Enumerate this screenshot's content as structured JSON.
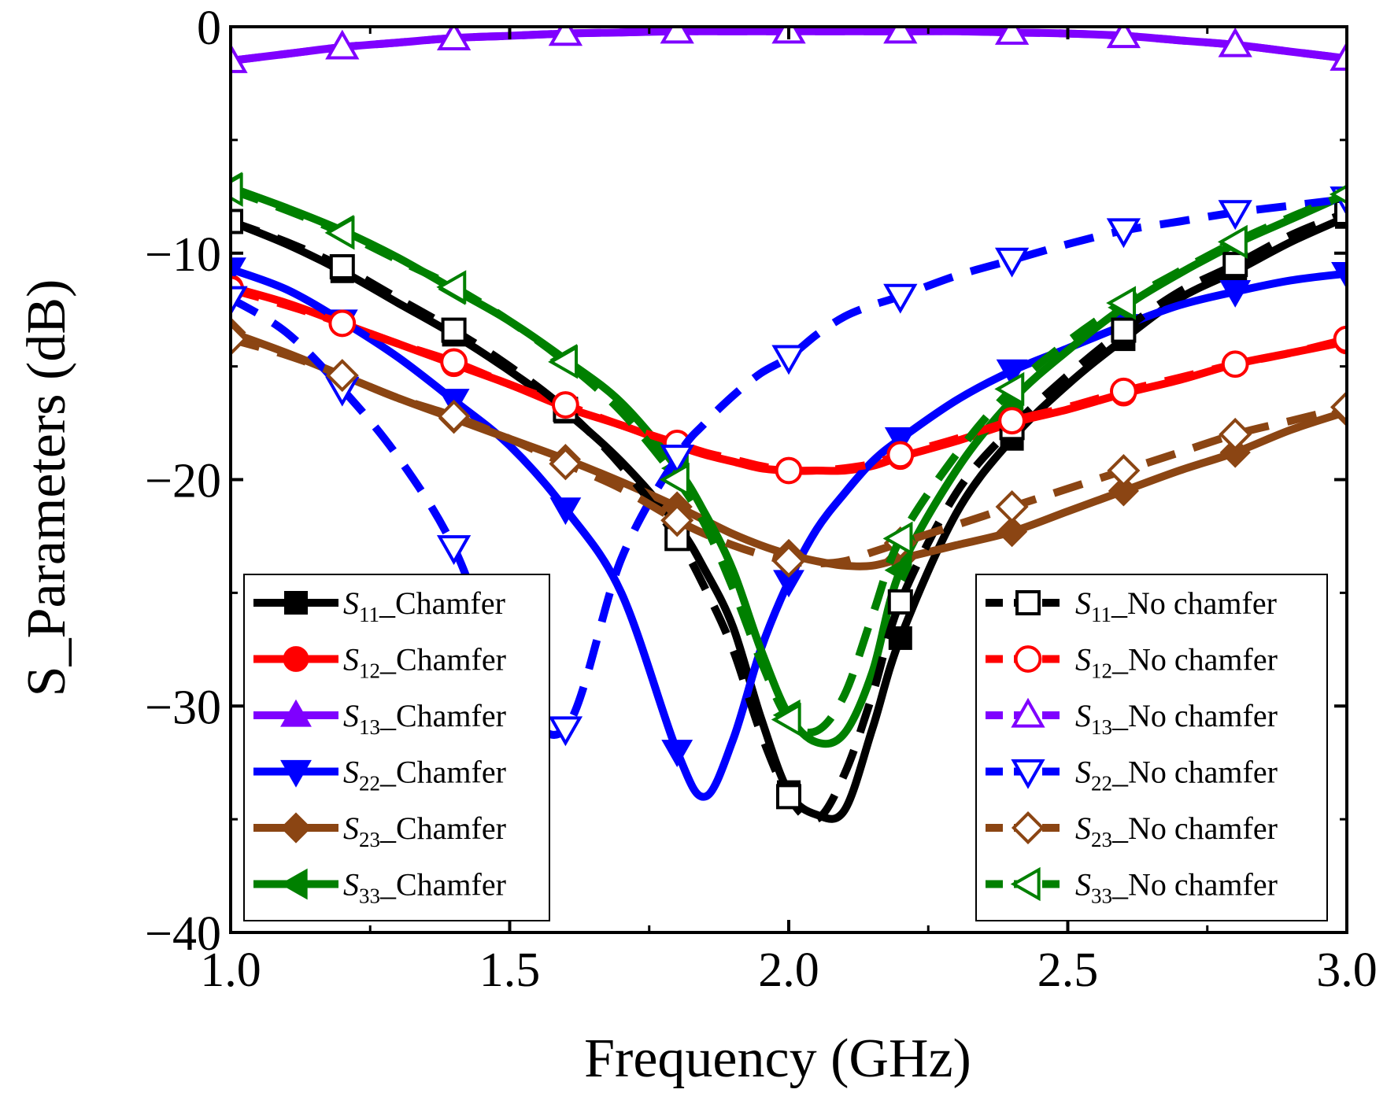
{
  "chart_data": {
    "type": "line",
    "title": "",
    "xlabel": "Frequency (GHz)",
    "ylabel": "S_Parameters (dB)",
    "xlim": [
      1.0,
      3.0
    ],
    "ylim": [
      -40,
      0
    ],
    "xticks": [
      1.0,
      1.5,
      2.0,
      2.5,
      3.0
    ],
    "xtick_labels": [
      "1.0",
      "1.5",
      "2.0",
      "2.5",
      "3.0"
    ],
    "yticks": [
      0,
      -10,
      -20,
      -30,
      -40
    ],
    "ytick_labels": [
      "0",
      "−10",
      "−20",
      "−30",
      "−40"
    ],
    "grid": false,
    "legend_placement": [
      "bottom-left",
      "bottom-right"
    ],
    "x": [
      1.0,
      1.1,
      1.2,
      1.3,
      1.4,
      1.5,
      1.6,
      1.7,
      1.8,
      1.85,
      1.9,
      1.95,
      2.0,
      2.05,
      2.1,
      2.15,
      2.2,
      2.3,
      2.4,
      2.5,
      2.6,
      2.7,
      2.8,
      2.9,
      3.0
    ],
    "series": [
      {
        "name": "S11_Chamfer",
        "sym": "S",
        "sub": "11",
        "suffix": "_Chamfer",
        "color": "#000000",
        "dash": false,
        "marker": "square",
        "filled": true,
        "group": "chamfer",
        "values": [
          -8.6,
          -9.6,
          -10.8,
          -12.2,
          -13.6,
          -15.2,
          -17.0,
          -19.2,
          -22.0,
          -24.0,
          -26.5,
          -30.5,
          -33.8,
          -34.8,
          -34.6,
          -31.0,
          -27.0,
          -21.5,
          -18.2,
          -15.8,
          -13.8,
          -12.0,
          -10.8,
          -9.5,
          -8.4
        ]
      },
      {
        "name": "S12_Chamfer",
        "sym": "S",
        "sub": "12",
        "suffix": "_Chamfer",
        "color": "#ff0000",
        "dash": false,
        "marker": "circle",
        "filled": true,
        "group": "chamfer",
        "values": [
          -11.5,
          -12.2,
          -13.1,
          -14.0,
          -14.9,
          -15.8,
          -16.8,
          -17.6,
          -18.5,
          -18.9,
          -19.2,
          -19.5,
          -19.6,
          -19.6,
          -19.6,
          -19.4,
          -19.0,
          -18.3,
          -17.5,
          -16.9,
          -16.2,
          -15.6,
          -14.9,
          -14.4,
          -13.9
        ]
      },
      {
        "name": "S13_Chamfer",
        "sym": "S",
        "sub": "13",
        "suffix": "_Chamfer",
        "color": "#7f00ff",
        "dash": false,
        "marker": "triangle-up",
        "filled": true,
        "group": "chamfer",
        "values": [
          -1.5,
          -1.2,
          -0.9,
          -0.7,
          -0.5,
          -0.4,
          -0.3,
          -0.25,
          -0.2,
          -0.2,
          -0.2,
          -0.2,
          -0.2,
          -0.2,
          -0.2,
          -0.2,
          -0.2,
          -0.2,
          -0.25,
          -0.3,
          -0.4,
          -0.6,
          -0.8,
          -1.1,
          -1.4
        ]
      },
      {
        "name": "S22_Chamfer",
        "sym": "S",
        "sub": "22",
        "suffix": "_Chamfer",
        "color": "#0000ff",
        "dash": false,
        "marker": "triangle-down",
        "filled": true,
        "group": "chamfer",
        "values": [
          -10.7,
          -11.6,
          -13.0,
          -14.6,
          -16.5,
          -18.5,
          -21.3,
          -25.0,
          -32.0,
          -34.0,
          -31.5,
          -27.5,
          -24.5,
          -22.2,
          -20.6,
          -19.2,
          -18.2,
          -16.5,
          -15.2,
          -14.2,
          -13.2,
          -12.3,
          -11.7,
          -11.2,
          -10.9
        ]
      },
      {
        "name": "S23_Chamfer",
        "sym": "S",
        "sub": "23",
        "suffix": "_Chamfer",
        "color": "#8b4513",
        "dash": false,
        "marker": "diamond",
        "filled": true,
        "group": "chamfer",
        "values": [
          -13.5,
          -14.4,
          -15.4,
          -16.4,
          -17.3,
          -18.2,
          -19.1,
          -20.1,
          -21.2,
          -21.8,
          -22.4,
          -22.9,
          -23.3,
          -23.6,
          -23.8,
          -23.8,
          -23.5,
          -22.9,
          -22.3,
          -21.4,
          -20.5,
          -19.6,
          -18.8,
          -17.8,
          -17.0
        ]
      },
      {
        "name": "S33_Chamfer",
        "sym": "S",
        "sub": "33",
        "suffix": "_Chamfer",
        "color": "#008000",
        "dash": false,
        "marker": "triangle-left",
        "filled": true,
        "group": "chamfer",
        "values": [
          -7.1,
          -8.0,
          -9.0,
          -10.2,
          -11.6,
          -13.0,
          -14.7,
          -16.6,
          -19.5,
          -21.5,
          -24.0,
          -27.5,
          -30.4,
          -31.6,
          -31.2,
          -28.5,
          -24.0,
          -19.6,
          -16.5,
          -14.3,
          -12.4,
          -10.9,
          -9.6,
          -8.5,
          -7.4
        ]
      },
      {
        "name": "S11_No chamfer",
        "sym": "S",
        "sub": "11",
        "suffix": "_No chamfer",
        "color": "#000000",
        "dash": true,
        "marker": "square",
        "filled": false,
        "group": "no-chamfer",
        "values": [
          -8.6,
          -9.5,
          -10.6,
          -12.0,
          -13.4,
          -15.0,
          -16.9,
          -19.4,
          -22.6,
          -24.8,
          -27.5,
          -31.2,
          -34.0,
          -35.0,
          -33.0,
          -29.5,
          -25.4,
          -20.6,
          -17.7,
          -15.4,
          -13.4,
          -11.7,
          -10.5,
          -9.2,
          -8.2
        ]
      },
      {
        "name": "S12_No chamfer",
        "sym": "S",
        "sub": "12",
        "suffix": "_No chamfer",
        "color": "#ff0000",
        "dash": true,
        "marker": "circle",
        "filled": false,
        "group": "no-chamfer",
        "values": [
          -11.6,
          -12.3,
          -13.1,
          -14.0,
          -14.8,
          -15.8,
          -16.7,
          -17.6,
          -18.4,
          -18.8,
          -19.1,
          -19.4,
          -19.6,
          -19.6,
          -19.5,
          -19.3,
          -18.9,
          -18.2,
          -17.4,
          -16.8,
          -16.1,
          -15.5,
          -14.9,
          -14.4,
          -13.8
        ]
      },
      {
        "name": "S13_No chamfer",
        "sym": "S",
        "sub": "13",
        "suffix": "_No chamfer",
        "color": "#7f00ff",
        "dash": true,
        "marker": "triangle-up",
        "filled": false,
        "group": "no-chamfer",
        "values": [
          -1.5,
          -1.2,
          -0.9,
          -0.7,
          -0.5,
          -0.4,
          -0.3,
          -0.25,
          -0.2,
          -0.2,
          -0.2,
          -0.2,
          -0.2,
          -0.2,
          -0.2,
          -0.2,
          -0.2,
          -0.2,
          -0.25,
          -0.3,
          -0.4,
          -0.6,
          -0.8,
          -1.1,
          -1.4
        ]
      },
      {
        "name": "S22_No chamfer",
        "sym": "S",
        "sub": "22",
        "suffix": "_No chamfer",
        "color": "#0000ff",
        "dash": true,
        "marker": "triangle-down",
        "filled": false,
        "group": "no-chamfer",
        "values": [
          -12.0,
          -13.5,
          -16.0,
          -19.0,
          -23.0,
          -29.0,
          -31.0,
          -23.5,
          -19.0,
          -17.5,
          -16.3,
          -15.3,
          -14.6,
          -13.6,
          -12.8,
          -12.3,
          -11.9,
          -11.0,
          -10.3,
          -9.6,
          -9.0,
          -8.6,
          -8.2,
          -7.9,
          -7.6
        ]
      },
      {
        "name": "S23_No chamfer",
        "sym": "S",
        "sub": "23",
        "suffix": "_No chamfer",
        "color": "#8b4513",
        "dash": true,
        "marker": "diamond",
        "filled": false,
        "group": "no-chamfer",
        "values": [
          -13.8,
          -14.5,
          -15.4,
          -16.4,
          -17.2,
          -18.2,
          -19.3,
          -20.4,
          -21.8,
          -22.4,
          -22.9,
          -23.3,
          -23.6,
          -23.7,
          -23.6,
          -23.2,
          -22.8,
          -22.0,
          -21.2,
          -20.4,
          -19.6,
          -18.8,
          -18.0,
          -17.4,
          -16.8
        ]
      },
      {
        "name": "S33_No chamfer",
        "sym": "S",
        "sub": "33",
        "suffix": "_No chamfer",
        "color": "#008000",
        "dash": true,
        "marker": "triangle-left",
        "filled": false,
        "group": "no-chamfer",
        "values": [
          -7.2,
          -8.1,
          -9.1,
          -10.3,
          -11.5,
          -13.0,
          -14.8,
          -17.0,
          -20.0,
          -22.0,
          -24.8,
          -28.0,
          -30.6,
          -31.1,
          -29.5,
          -26.0,
          -22.6,
          -18.9,
          -16.0,
          -13.9,
          -12.2,
          -10.8,
          -9.5,
          -8.4,
          -7.4
        ]
      }
    ]
  }
}
